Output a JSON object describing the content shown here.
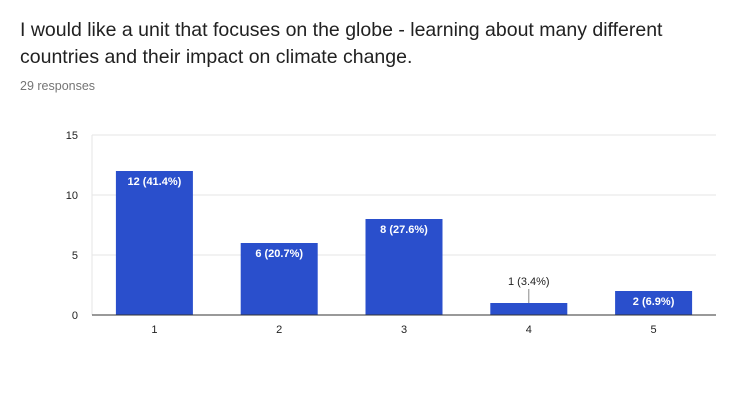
{
  "question": {
    "title": "I would like a unit that focuses on the globe - learning about many different countries and their impact on climate change.",
    "responses": "29 responses"
  },
  "colors": {
    "bar": "#2a4fcc",
    "grid": "#e6e6e6",
    "axis": "#333333"
  },
  "chart_data": {
    "type": "bar",
    "categories": [
      "1",
      "2",
      "3",
      "4",
      "5"
    ],
    "values": [
      12,
      6,
      8,
      1,
      2
    ],
    "data_labels": [
      "12 (41.4%)",
      "6 (20.7%)",
      "8 (27.6%)",
      "1 (3.4%)",
      "2 (6.9%)"
    ],
    "yticks": [
      0,
      5,
      10,
      15
    ],
    "ylim": [
      0,
      15
    ],
    "grid": true,
    "legend": "none",
    "title": "",
    "xlabel": "",
    "ylabel": ""
  }
}
